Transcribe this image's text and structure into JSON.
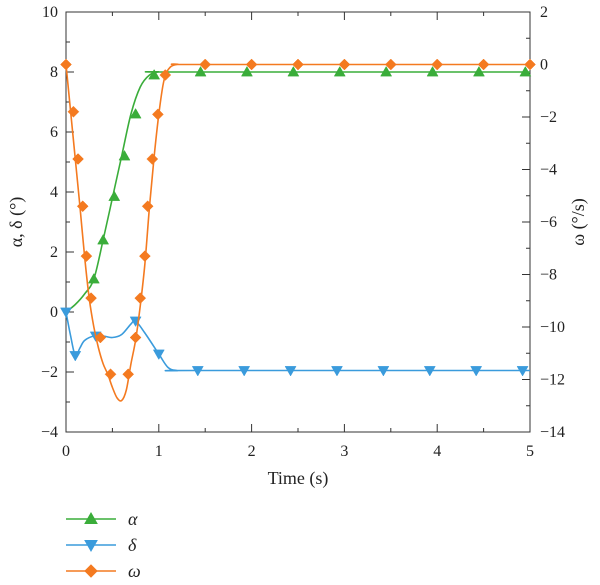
{
  "chart_data": {
    "type": "line",
    "xlabel": "Time (s)",
    "ylabel_left": "α, δ (°)",
    "ylabel_right": "ω (°/s)",
    "xlim": [
      0,
      5
    ],
    "ylim_left": [
      -4,
      10
    ],
    "ylim_right": [
      -14,
      2
    ],
    "x_ticks": [
      "0",
      "1",
      "2",
      "3",
      "4",
      "5"
    ],
    "y_left_ticks": [
      "−4",
      "−2",
      "0",
      "2",
      "4",
      "6",
      "8",
      "10"
    ],
    "y_right_ticks": [
      "−14",
      "−12",
      "−10",
      "−8",
      "−6",
      "−4",
      "−2",
      "0",
      "2"
    ],
    "grid": false,
    "legend_position": "bottom-left, below axes",
    "series": [
      {
        "name": "α",
        "axis": "left",
        "color": "#3aad3a",
        "marker": "triangle-up",
        "curve": [
          [
            0,
            0
          ],
          [
            0.1,
            0.25
          ],
          [
            0.2,
            0.6
          ],
          [
            0.3,
            1.1
          ],
          [
            0.4,
            2.4
          ],
          [
            0.5,
            3.8
          ],
          [
            0.6,
            5.2
          ],
          [
            0.7,
            6.6
          ],
          [
            0.8,
            7.5
          ],
          [
            0.9,
            7.9
          ],
          [
            1.0,
            8.0
          ],
          [
            1.2,
            8.0
          ],
          [
            5,
            8.0
          ]
        ],
        "markers": [
          [
            0.3,
            1.1
          ],
          [
            0.4,
            2.4
          ],
          [
            0.52,
            3.85
          ],
          [
            0.63,
            5.2
          ],
          [
            0.75,
            6.6
          ],
          [
            0.95,
            7.9
          ],
          [
            1.45,
            8.0
          ],
          [
            1.95,
            8.0
          ],
          [
            2.45,
            8.0
          ],
          [
            2.95,
            8.0
          ],
          [
            3.45,
            8.0
          ],
          [
            3.95,
            8.0
          ],
          [
            4.45,
            8.0
          ],
          [
            4.95,
            8.0
          ]
        ]
      },
      {
        "name": "δ",
        "axis": "left",
        "color": "#3a9bdc",
        "marker": "triangle-down",
        "curve": [
          [
            0,
            0
          ],
          [
            0.05,
            -0.8
          ],
          [
            0.1,
            -1.45
          ],
          [
            0.15,
            -1.2
          ],
          [
            0.2,
            -0.95
          ],
          [
            0.3,
            -0.8
          ],
          [
            0.4,
            -0.8
          ],
          [
            0.5,
            -0.85
          ],
          [
            0.6,
            -0.75
          ],
          [
            0.7,
            -0.4
          ],
          [
            0.75,
            -0.3
          ],
          [
            0.85,
            -0.7
          ],
          [
            1.0,
            -1.4
          ],
          [
            1.1,
            -1.85
          ],
          [
            1.2,
            -1.95
          ],
          [
            1.4,
            -1.95
          ],
          [
            5,
            -1.95
          ]
        ],
        "markers": [
          [
            0,
            0
          ],
          [
            0.1,
            -1.45
          ],
          [
            0.32,
            -0.8
          ],
          [
            0.75,
            -0.3
          ],
          [
            1.0,
            -1.4
          ],
          [
            1.42,
            -1.95
          ],
          [
            1.92,
            -1.95
          ],
          [
            2.42,
            -1.95
          ],
          [
            2.92,
            -1.95
          ],
          [
            3.42,
            -1.95
          ],
          [
            3.92,
            -1.95
          ],
          [
            4.42,
            -1.95
          ],
          [
            4.92,
            -1.95
          ]
        ]
      },
      {
        "name": "ω",
        "axis": "right",
        "color": "#f47a20",
        "marker": "diamond",
        "curve": [
          [
            0,
            0
          ],
          [
            0.05,
            -1.8
          ],
          [
            0.1,
            -3.6
          ],
          [
            0.15,
            -5.4
          ],
          [
            0.2,
            -7.3
          ],
          [
            0.25,
            -8.9
          ],
          [
            0.3,
            -10.0
          ],
          [
            0.35,
            -10.8
          ],
          [
            0.4,
            -11.4
          ],
          [
            0.45,
            -11.8
          ],
          [
            0.5,
            -12.3
          ],
          [
            0.55,
            -12.7
          ],
          [
            0.6,
            -12.8
          ],
          [
            0.65,
            -12.4
          ],
          [
            0.7,
            -11.4
          ],
          [
            0.75,
            -10.5
          ],
          [
            0.8,
            -9.2
          ],
          [
            0.85,
            -7.6
          ],
          [
            0.9,
            -5.4
          ],
          [
            0.95,
            -3.5
          ],
          [
            1.0,
            -1.9
          ],
          [
            1.05,
            -0.7
          ],
          [
            1.1,
            -0.2
          ],
          [
            1.2,
            0
          ],
          [
            1.5,
            0
          ],
          [
            5,
            0
          ]
        ],
        "markers": [
          [
            0,
            0
          ],
          [
            0.08,
            -1.8
          ],
          [
            0.13,
            -3.6
          ],
          [
            0.18,
            -5.4
          ],
          [
            0.22,
            -7.3
          ],
          [
            0.27,
            -8.9
          ],
          [
            0.37,
            -10.4
          ],
          [
            0.48,
            -11.8
          ],
          [
            0.67,
            -11.8
          ],
          [
            0.75,
            -10.4
          ],
          [
            0.8,
            -8.9
          ],
          [
            0.85,
            -7.3
          ],
          [
            0.88,
            -5.4
          ],
          [
            0.93,
            -3.6
          ],
          [
            0.99,
            -1.9
          ],
          [
            1.07,
            -0.4
          ],
          [
            1.5,
            0
          ],
          [
            2.0,
            0
          ],
          [
            2.5,
            0
          ],
          [
            3.0,
            0
          ],
          [
            3.5,
            0
          ],
          [
            4.0,
            0
          ],
          [
            4.5,
            0
          ],
          [
            5.0,
            0
          ]
        ]
      }
    ]
  }
}
